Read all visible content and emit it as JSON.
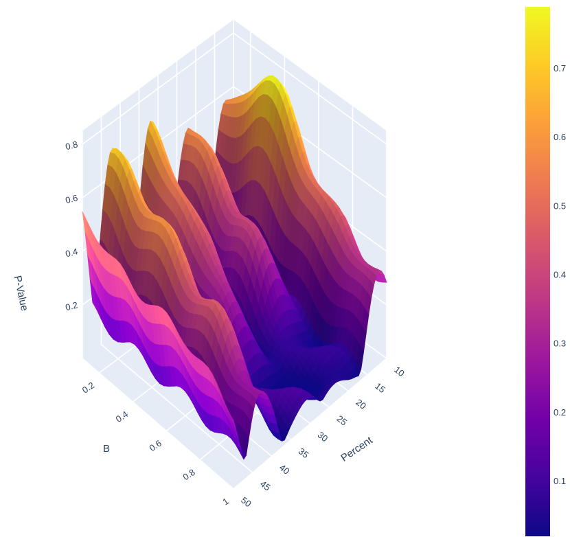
{
  "chart_data": {
    "type": "surface",
    "title": "",
    "axes": {
      "x": {
        "label": "Percent",
        "ticks": [
          10,
          15,
          20,
          25,
          30,
          35,
          40,
          45,
          50
        ],
        "range": [
          10,
          50
        ]
      },
      "y": {
        "label": "B",
        "ticks": [
          0.2,
          0.4,
          0.6,
          0.8,
          1
        ],
        "range": [
          0.1,
          1
        ]
      },
      "z": {
        "label": "P-Value",
        "ticks": [
          0.2,
          0.4,
          0.6,
          0.8
        ],
        "range": [
          0,
          0.8
        ]
      }
    },
    "colorbar": {
      "colorscale": "plasma",
      "range": [
        0.02,
        0.79
      ],
      "ticks": [
        0.1,
        0.2,
        0.3,
        0.4,
        0.5,
        0.6,
        0.7
      ]
    },
    "ridges": [
      {
        "percent": 12,
        "profile_B": [
          0.1,
          0.35,
          0.75,
          1.0
        ],
        "profile_p": [
          0.55,
          0.78,
          0.45,
          0.32
        ]
      },
      {
        "percent": 22,
        "profile_B": [
          0.1,
          0.4,
          0.8,
          1.0
        ],
        "profile_p": [
          0.6,
          0.42,
          0.05,
          0.08
        ]
      },
      {
        "percent": 32,
        "profile_B": [
          0.1,
          0.4,
          0.8,
          1.0
        ],
        "profile_p": [
          0.68,
          0.45,
          0.05,
          0.1
        ]
      },
      {
        "percent": 40,
        "profile_B": [
          0.1,
          0.3,
          0.7,
          1.0
        ],
        "profile_p": [
          0.7,
          0.62,
          0.42,
          0.22
        ]
      },
      {
        "percent": 48,
        "profile_B": [
          0.1,
          0.3,
          0.7,
          1.0
        ],
        "profile_p": [
          0.68,
          0.55,
          0.5,
          0.35
        ]
      }
    ],
    "grid": true,
    "legend": "none"
  }
}
